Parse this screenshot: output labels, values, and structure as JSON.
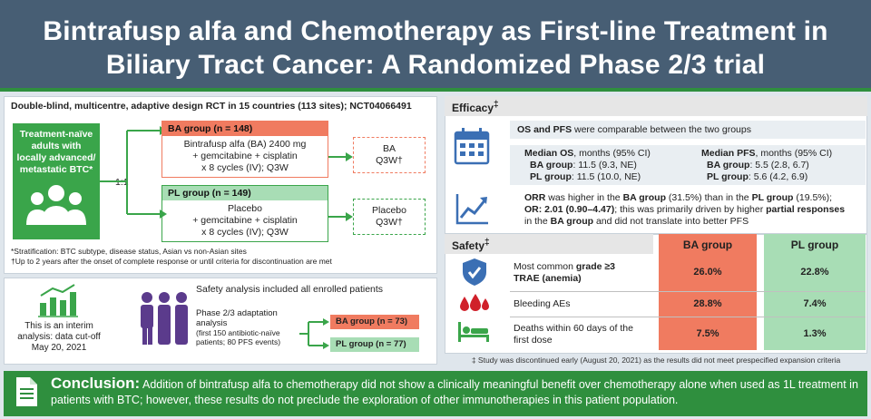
{
  "header": {
    "title_line1": "Bintrafusp alfa and Chemotherapy as First-line Treatment in",
    "title_line2": "Biliary Tract Cancer: A Randomized Phase 2/3 trial"
  },
  "design": {
    "heading": "Double-blind, multicentre, adaptive design RCT in 15 countries (113 sites); NCT04066491",
    "population": "Treatment-naïve adults with locally advanced/ metastatic BTC*",
    "ratio": "1:1",
    "ba_header": "BA group (n = 148)",
    "ba_body": [
      "Bintrafusp alfa (BA) 2400 mg",
      "+ gemcitabine + cisplatin",
      "x 8 cycles (IV); Q3W"
    ],
    "ba_after": [
      "BA",
      "Q3W†"
    ],
    "pl_header": "PL group (n = 149)",
    "pl_body": [
      "Placebo",
      "+ gemcitabine + cisplatin",
      "x 8 cycles (IV); Q3W"
    ],
    "pl_after": [
      "Placebo",
      "Q3W†"
    ],
    "footnote1": "*Stratification: BTC subtype, disease status, Asian vs non-Asian sites",
    "footnote2": "†Up to 2 years after the onset of complete response or until criteria for discontinuation are met"
  },
  "interim": {
    "cutoff": [
      "This is an interim",
      "analysis: data cut-off",
      "May 20, 2021"
    ],
    "safety_all": "Safety analysis included all enrolled patients",
    "adapt_title": [
      "Phase 2/3 adaptation",
      "analysis"
    ],
    "adapt_note": [
      "(first 150 antibiotic-naïve",
      "patients; 80 PFS events)"
    ],
    "ba_n": "BA group (n = 73)",
    "pl_n": "PL group (n = 77)"
  },
  "efficacy": {
    "title": "Efficacy",
    "title_mark": "‡",
    "comparable_bold": "OS and PFS",
    "comparable_rest": " were comparable between the two groups",
    "os_label": "Median OS",
    "os_unit": ", months (95% CI)",
    "os_ba_label": "BA group",
    "os_ba": ": 11.5 (9.3, NE)",
    "os_pl_label": "PL group",
    "os_pl": ": 11.5 (10.0, NE)",
    "pfs_label": "Median PFS",
    "pfs_unit": ", months (95% CI)",
    "pfs_ba_label": "BA group",
    "pfs_ba": ": 5.5 (2.8, 6.7)",
    "pfs_pl_label": "PL group",
    "pfs_pl": ": 5.6 (4.2, 6.9)",
    "orr_l1a": "ORR",
    "orr_l1b": " was higher in the ",
    "orr_l1c": "BA group",
    "orr_l1d": " (31.5%) than in the ",
    "orr_l1e": "PL group",
    "orr_l1f": " (19.5%);",
    "orr_l2a": "OR: 2.01 (0.90–4.47)",
    "orr_l2b": "; this was primarily driven by higher ",
    "orr_l2c": "partial responses",
    "orr_l3a": "in the ",
    "orr_l3b": "BA group",
    "orr_l3c": " and did not translate into better PFS"
  },
  "safety": {
    "title": "Safety",
    "title_mark": "‡",
    "col_ba": "BA group",
    "col_pl": "PL group",
    "rows": [
      {
        "label_a": "Most common ",
        "label_b": "grade ≥3",
        "label_c": "TRAE (anemia)",
        "ba": "26.0%",
        "pl": "22.8%"
      },
      {
        "label_a": "Bleeding AEs",
        "ba": "28.8%",
        "pl": "7.4%"
      },
      {
        "label_a": "Deaths within 60 days of the",
        "label_c": "first dose",
        "ba": "7.5%",
        "pl": "1.3%"
      }
    ],
    "footnote": "‡ Study was discontinued early (August 20, 2021) as the results did not meet prespecified expansion criteria"
  },
  "conclusion": {
    "label": "Conclusion:",
    "text": " Addition of bintrafusp alfa to chemotherapy did not show a clinically meaningful benefit over chemotherapy alone when used as 1L treatment in patients with BTC; however, these results do not preclude the exploration of other immunotherapies in this patient population."
  },
  "colors": {
    "header": "#475e74",
    "green": "#3aa54a",
    "orange": "#f07b60",
    "light_green": "#a8ddb5",
    "icon_blue": "#3b6fb4",
    "purple": "#5b3b8c"
  }
}
